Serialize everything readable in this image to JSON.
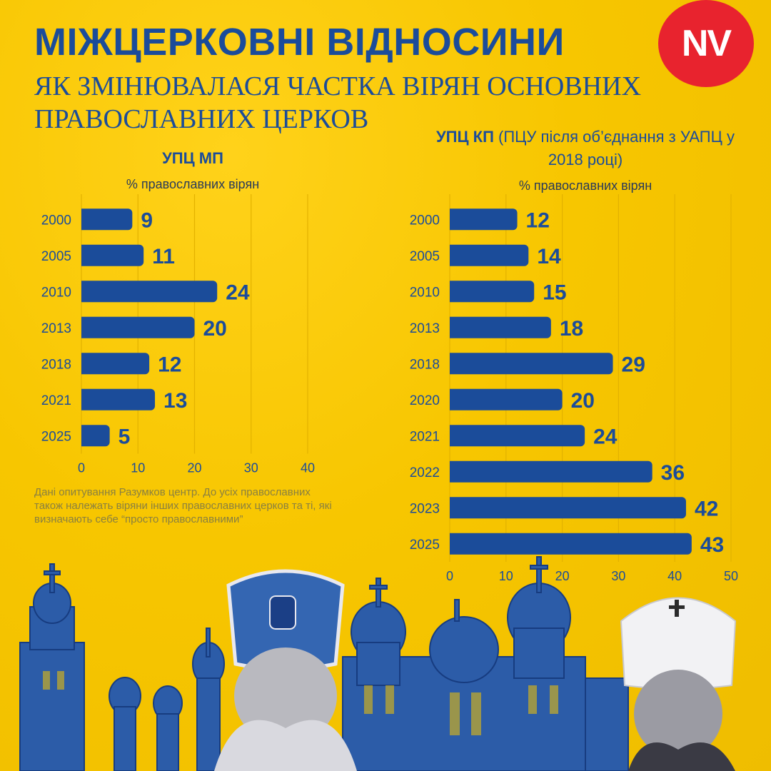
{
  "title": "МІЖЦЕРКОВНІ ВІДНОСИНИ",
  "subtitle": "ЯК ЗМІНЮВАЛАСЯ ЧАСТКА ВІРЯН ОСНОВНИХ ПРАВОСЛАВНИХ ЦЕРКОВ",
  "logo_text": "NV",
  "note": "Дані опитування Разумков центр. До усіх православних також належать віряни інших православних церков та ті, які визначають себе “просто православними”",
  "colors": {
    "background": "#f5c400",
    "bar": "#1b4c9a",
    "logo": "#e8232e",
    "text": "#1b4c9a"
  },
  "chart_data": [
    {
      "type": "bar",
      "orientation": "horizontal",
      "title_bold": "УПЦ МП",
      "title_rest": "",
      "xlabel": "% православних вірян",
      "categories": [
        "2000",
        "2005",
        "2010",
        "2013",
        "2018",
        "2021",
        "2025"
      ],
      "values": [
        9,
        11,
        24,
        20,
        12,
        13,
        5
      ],
      "xlim": [
        0,
        40
      ],
      "xticks": [
        0,
        10,
        20,
        30,
        40
      ],
      "grid": true
    },
    {
      "type": "bar",
      "orientation": "horizontal",
      "title_bold": "УПЦ КП",
      "title_rest": " (ПЦУ після об’єднання з УАПЦ у 2018 році)",
      "xlabel": "% православних вірян",
      "categories": [
        "2000",
        "2005",
        "2010",
        "2013",
        "2018",
        "2020",
        "2021",
        "2022",
        "2023",
        "2025"
      ],
      "values": [
        12,
        14,
        15,
        18,
        29,
        20,
        24,
        36,
        42,
        43
      ],
      "xlim": [
        0,
        50
      ],
      "xticks": [
        0,
        10,
        20,
        30,
        40,
        50
      ],
      "grid": true
    }
  ]
}
